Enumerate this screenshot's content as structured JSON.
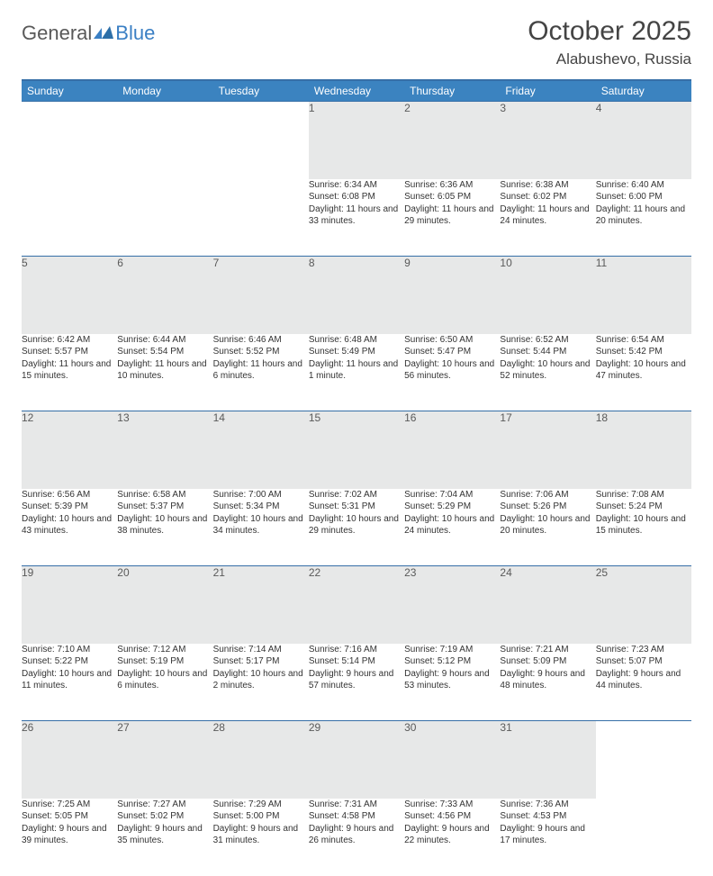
{
  "brand": {
    "text1": "General",
    "text2": "Blue",
    "color_general": "#595959",
    "color_blue": "#3a7fc4"
  },
  "title": {
    "month": "October 2025",
    "location": "Alabushevo, Russia"
  },
  "colors": {
    "header_bg": "#3b83c0",
    "header_fg": "#ffffff",
    "rule": "#366fa7",
    "daynum_bg": "#e7e8e8",
    "text": "#333333"
  },
  "weekdays": [
    "Sunday",
    "Monday",
    "Tuesday",
    "Wednesday",
    "Thursday",
    "Friday",
    "Saturday"
  ],
  "weeks": [
    [
      null,
      null,
      null,
      {
        "n": "1",
        "sr": "6:34 AM",
        "ss": "6:08 PM",
        "dl": "11 hours and 33 minutes."
      },
      {
        "n": "2",
        "sr": "6:36 AM",
        "ss": "6:05 PM",
        "dl": "11 hours and 29 minutes."
      },
      {
        "n": "3",
        "sr": "6:38 AM",
        "ss": "6:02 PM",
        "dl": "11 hours and 24 minutes."
      },
      {
        "n": "4",
        "sr": "6:40 AM",
        "ss": "6:00 PM",
        "dl": "11 hours and 20 minutes."
      }
    ],
    [
      {
        "n": "5",
        "sr": "6:42 AM",
        "ss": "5:57 PM",
        "dl": "11 hours and 15 minutes."
      },
      {
        "n": "6",
        "sr": "6:44 AM",
        "ss": "5:54 PM",
        "dl": "11 hours and 10 minutes."
      },
      {
        "n": "7",
        "sr": "6:46 AM",
        "ss": "5:52 PM",
        "dl": "11 hours and 6 minutes."
      },
      {
        "n": "8",
        "sr": "6:48 AM",
        "ss": "5:49 PM",
        "dl": "11 hours and 1 minute."
      },
      {
        "n": "9",
        "sr": "6:50 AM",
        "ss": "5:47 PM",
        "dl": "10 hours and 56 minutes."
      },
      {
        "n": "10",
        "sr": "6:52 AM",
        "ss": "5:44 PM",
        "dl": "10 hours and 52 minutes."
      },
      {
        "n": "11",
        "sr": "6:54 AM",
        "ss": "5:42 PM",
        "dl": "10 hours and 47 minutes."
      }
    ],
    [
      {
        "n": "12",
        "sr": "6:56 AM",
        "ss": "5:39 PM",
        "dl": "10 hours and 43 minutes."
      },
      {
        "n": "13",
        "sr": "6:58 AM",
        "ss": "5:37 PM",
        "dl": "10 hours and 38 minutes."
      },
      {
        "n": "14",
        "sr": "7:00 AM",
        "ss": "5:34 PM",
        "dl": "10 hours and 34 minutes."
      },
      {
        "n": "15",
        "sr": "7:02 AM",
        "ss": "5:31 PM",
        "dl": "10 hours and 29 minutes."
      },
      {
        "n": "16",
        "sr": "7:04 AM",
        "ss": "5:29 PM",
        "dl": "10 hours and 24 minutes."
      },
      {
        "n": "17",
        "sr": "7:06 AM",
        "ss": "5:26 PM",
        "dl": "10 hours and 20 minutes."
      },
      {
        "n": "18",
        "sr": "7:08 AM",
        "ss": "5:24 PM",
        "dl": "10 hours and 15 minutes."
      }
    ],
    [
      {
        "n": "19",
        "sr": "7:10 AM",
        "ss": "5:22 PM",
        "dl": "10 hours and 11 minutes."
      },
      {
        "n": "20",
        "sr": "7:12 AM",
        "ss": "5:19 PM",
        "dl": "10 hours and 6 minutes."
      },
      {
        "n": "21",
        "sr": "7:14 AM",
        "ss": "5:17 PM",
        "dl": "10 hours and 2 minutes."
      },
      {
        "n": "22",
        "sr": "7:16 AM",
        "ss": "5:14 PM",
        "dl": "9 hours and 57 minutes."
      },
      {
        "n": "23",
        "sr": "7:19 AM",
        "ss": "5:12 PM",
        "dl": "9 hours and 53 minutes."
      },
      {
        "n": "24",
        "sr": "7:21 AM",
        "ss": "5:09 PM",
        "dl": "9 hours and 48 minutes."
      },
      {
        "n": "25",
        "sr": "7:23 AM",
        "ss": "5:07 PM",
        "dl": "9 hours and 44 minutes."
      }
    ],
    [
      {
        "n": "26",
        "sr": "7:25 AM",
        "ss": "5:05 PM",
        "dl": "9 hours and 39 minutes."
      },
      {
        "n": "27",
        "sr": "7:27 AM",
        "ss": "5:02 PM",
        "dl": "9 hours and 35 minutes."
      },
      {
        "n": "28",
        "sr": "7:29 AM",
        "ss": "5:00 PM",
        "dl": "9 hours and 31 minutes."
      },
      {
        "n": "29",
        "sr": "7:31 AM",
        "ss": "4:58 PM",
        "dl": "9 hours and 26 minutes."
      },
      {
        "n": "30",
        "sr": "7:33 AM",
        "ss": "4:56 PM",
        "dl": "9 hours and 22 minutes."
      },
      {
        "n": "31",
        "sr": "7:36 AM",
        "ss": "4:53 PM",
        "dl": "9 hours and 17 minutes."
      },
      null
    ]
  ],
  "labels": {
    "sunrise": "Sunrise:",
    "sunset": "Sunset:",
    "daylight": "Daylight:"
  }
}
